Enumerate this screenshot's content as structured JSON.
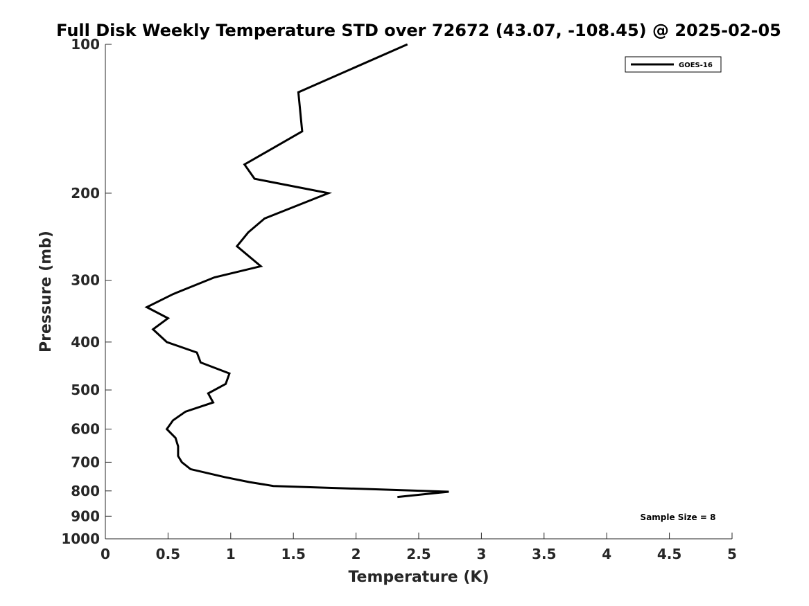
{
  "chart_data": {
    "type": "line",
    "title": "Full Disk Weekly Temperature STD over 72672 (43.07, -108.45) @ 2025-02-05",
    "xlabel": "Temperature (K)",
    "ylabel": "Pressure (mb)",
    "xlim": [
      0,
      5
    ],
    "ylim": [
      100,
      1000
    ],
    "yscale": "log",
    "y_reversed": true,
    "x_ticks": [
      "0",
      "0.5",
      "1",
      "1.5",
      "2",
      "2.5",
      "3",
      "3.5",
      "4",
      "4.5",
      "5"
    ],
    "x_tick_values": [
      0,
      0.5,
      1,
      1.5,
      2,
      2.5,
      3,
      3.5,
      4,
      4.5,
      5
    ],
    "y_ticks": [
      "100",
      "200",
      "300",
      "400",
      "500",
      "600",
      "700",
      "800",
      "900",
      "1000"
    ],
    "y_tick_values": [
      100,
      200,
      300,
      400,
      500,
      600,
      700,
      800,
      900,
      1000
    ],
    "grid": false,
    "legend_position": "top-right",
    "series": [
      {
        "name": "GOES-16",
        "color": "#000000",
        "points": [
          [
            2.41,
            100
          ],
          [
            1.54,
            125
          ],
          [
            1.57,
            150
          ],
          [
            1.11,
            175
          ],
          [
            1.19,
            187
          ],
          [
            1.78,
            200
          ],
          [
            1.27,
            225
          ],
          [
            1.14,
            240
          ],
          [
            1.05,
            256
          ],
          [
            1.24,
            281
          ],
          [
            0.87,
            296
          ],
          [
            0.54,
            320
          ],
          [
            0.33,
            340
          ],
          [
            0.5,
            358
          ],
          [
            0.38,
            377
          ],
          [
            0.49,
            400
          ],
          [
            0.73,
            420
          ],
          [
            0.76,
            440
          ],
          [
            0.99,
            463
          ],
          [
            0.96,
            486
          ],
          [
            0.82,
            508
          ],
          [
            0.86,
            530
          ],
          [
            0.64,
            553
          ],
          [
            0.54,
            576
          ],
          [
            0.49,
            600
          ],
          [
            0.56,
            625
          ],
          [
            0.58,
            650
          ],
          [
            0.58,
            680
          ],
          [
            0.61,
            700
          ],
          [
            0.68,
            723
          ],
          [
            0.95,
            750
          ],
          [
            1.15,
            768
          ],
          [
            1.34,
            782
          ],
          [
            2.74,
            803
          ],
          [
            2.33,
            823
          ]
        ]
      }
    ],
    "annotations": [
      "Sample Size = 8"
    ]
  }
}
